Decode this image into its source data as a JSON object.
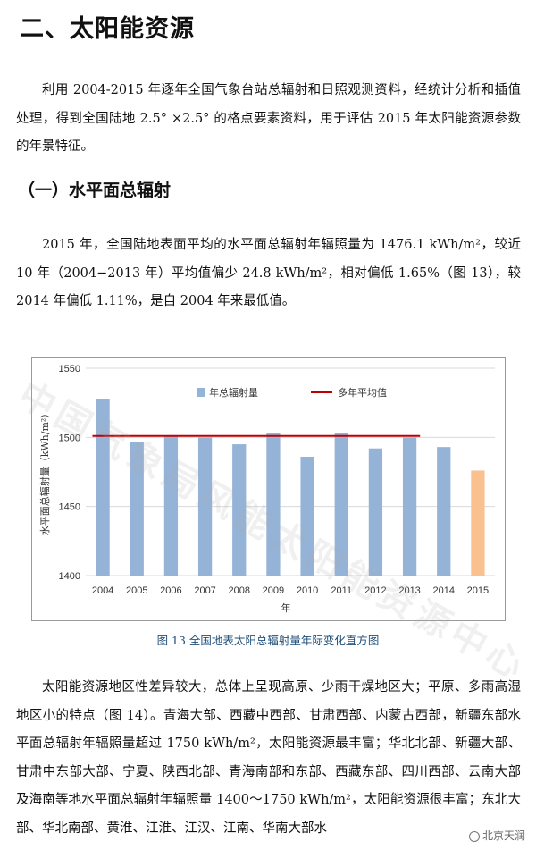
{
  "section_title": "二、太阳能资源",
  "paragraph1": "利用 2004-2015 年逐年全国气象台站总辐射和日照观测资料，经统计分析和插值处理，得到全国陆地 2.5° ×2.5° 的格点要素资料，用于评估 2015 年太阳能资源参数的年景特征。",
  "subsection_title": "（一）水平面总辐射",
  "paragraph2": "2015 年，全国陆地表面平均的水平面总辐射年辐照量为 1476.1 kWh/m²，较近 10 年（2004−2013 年）平均值偏少 24.8 kWh/m²，相对偏低 1.65%（图 13），较 2014 年偏低 1.11%，是自 2004 年来最低值。",
  "figure_caption": "图 13  全国地表太阳总辐射量年际变化直方图",
  "paragraph3": "太阳能资源地区性差异较大，总体上呈现高原、少雨干燥地区大；平原、多雨高湿地区小的特点（图 14）。青海大部、西藏中西部、甘肃西部、内蒙古西部，新疆东部水平面总辐射年辐照量超过 1750 kWh/m²，太阳能资源最丰富；华北北部、新疆大部、甘肃中东部大部、宁夏、陕西北部、青海南部和东部、西藏东部、四川西部、云南大部及海南等地水平面总辐射年辐照量 1400～1750 kWh/m²，太阳能资源很丰富；东北大部、华北南部、黄淮、江淮、江汉、江南、华南大部水",
  "watermark": "中国气象局风能太阳能资源中心",
  "footer_logo": "北京天润",
  "chart_data": {
    "type": "bar",
    "categories": [
      "2004",
      "2005",
      "2006",
      "2007",
      "2008",
      "2009",
      "2010",
      "2011",
      "2012",
      "2013",
      "2014",
      "2015"
    ],
    "values": [
      1528,
      1497,
      1501,
      1500,
      1495,
      1503,
      1486,
      1503,
      1492,
      1500,
      1493,
      1476
    ],
    "average_line": {
      "name": "多年平均值",
      "value": 1501,
      "from": "2004",
      "to": "2013"
    },
    "series_name": "年总辐射量",
    "xlabel": "年",
    "ylabel": "水平面总辐射量（kWh/m²）",
    "ylim": [
      1400,
      1550
    ],
    "yticks": [
      1400,
      1450,
      1500,
      1550
    ],
    "grid": true,
    "legend": "top",
    "colors": {
      "bar": "#95b3d7",
      "highlight_bar": "#fac090",
      "average": "#c00000",
      "grid": "#d9d9d9"
    }
  }
}
